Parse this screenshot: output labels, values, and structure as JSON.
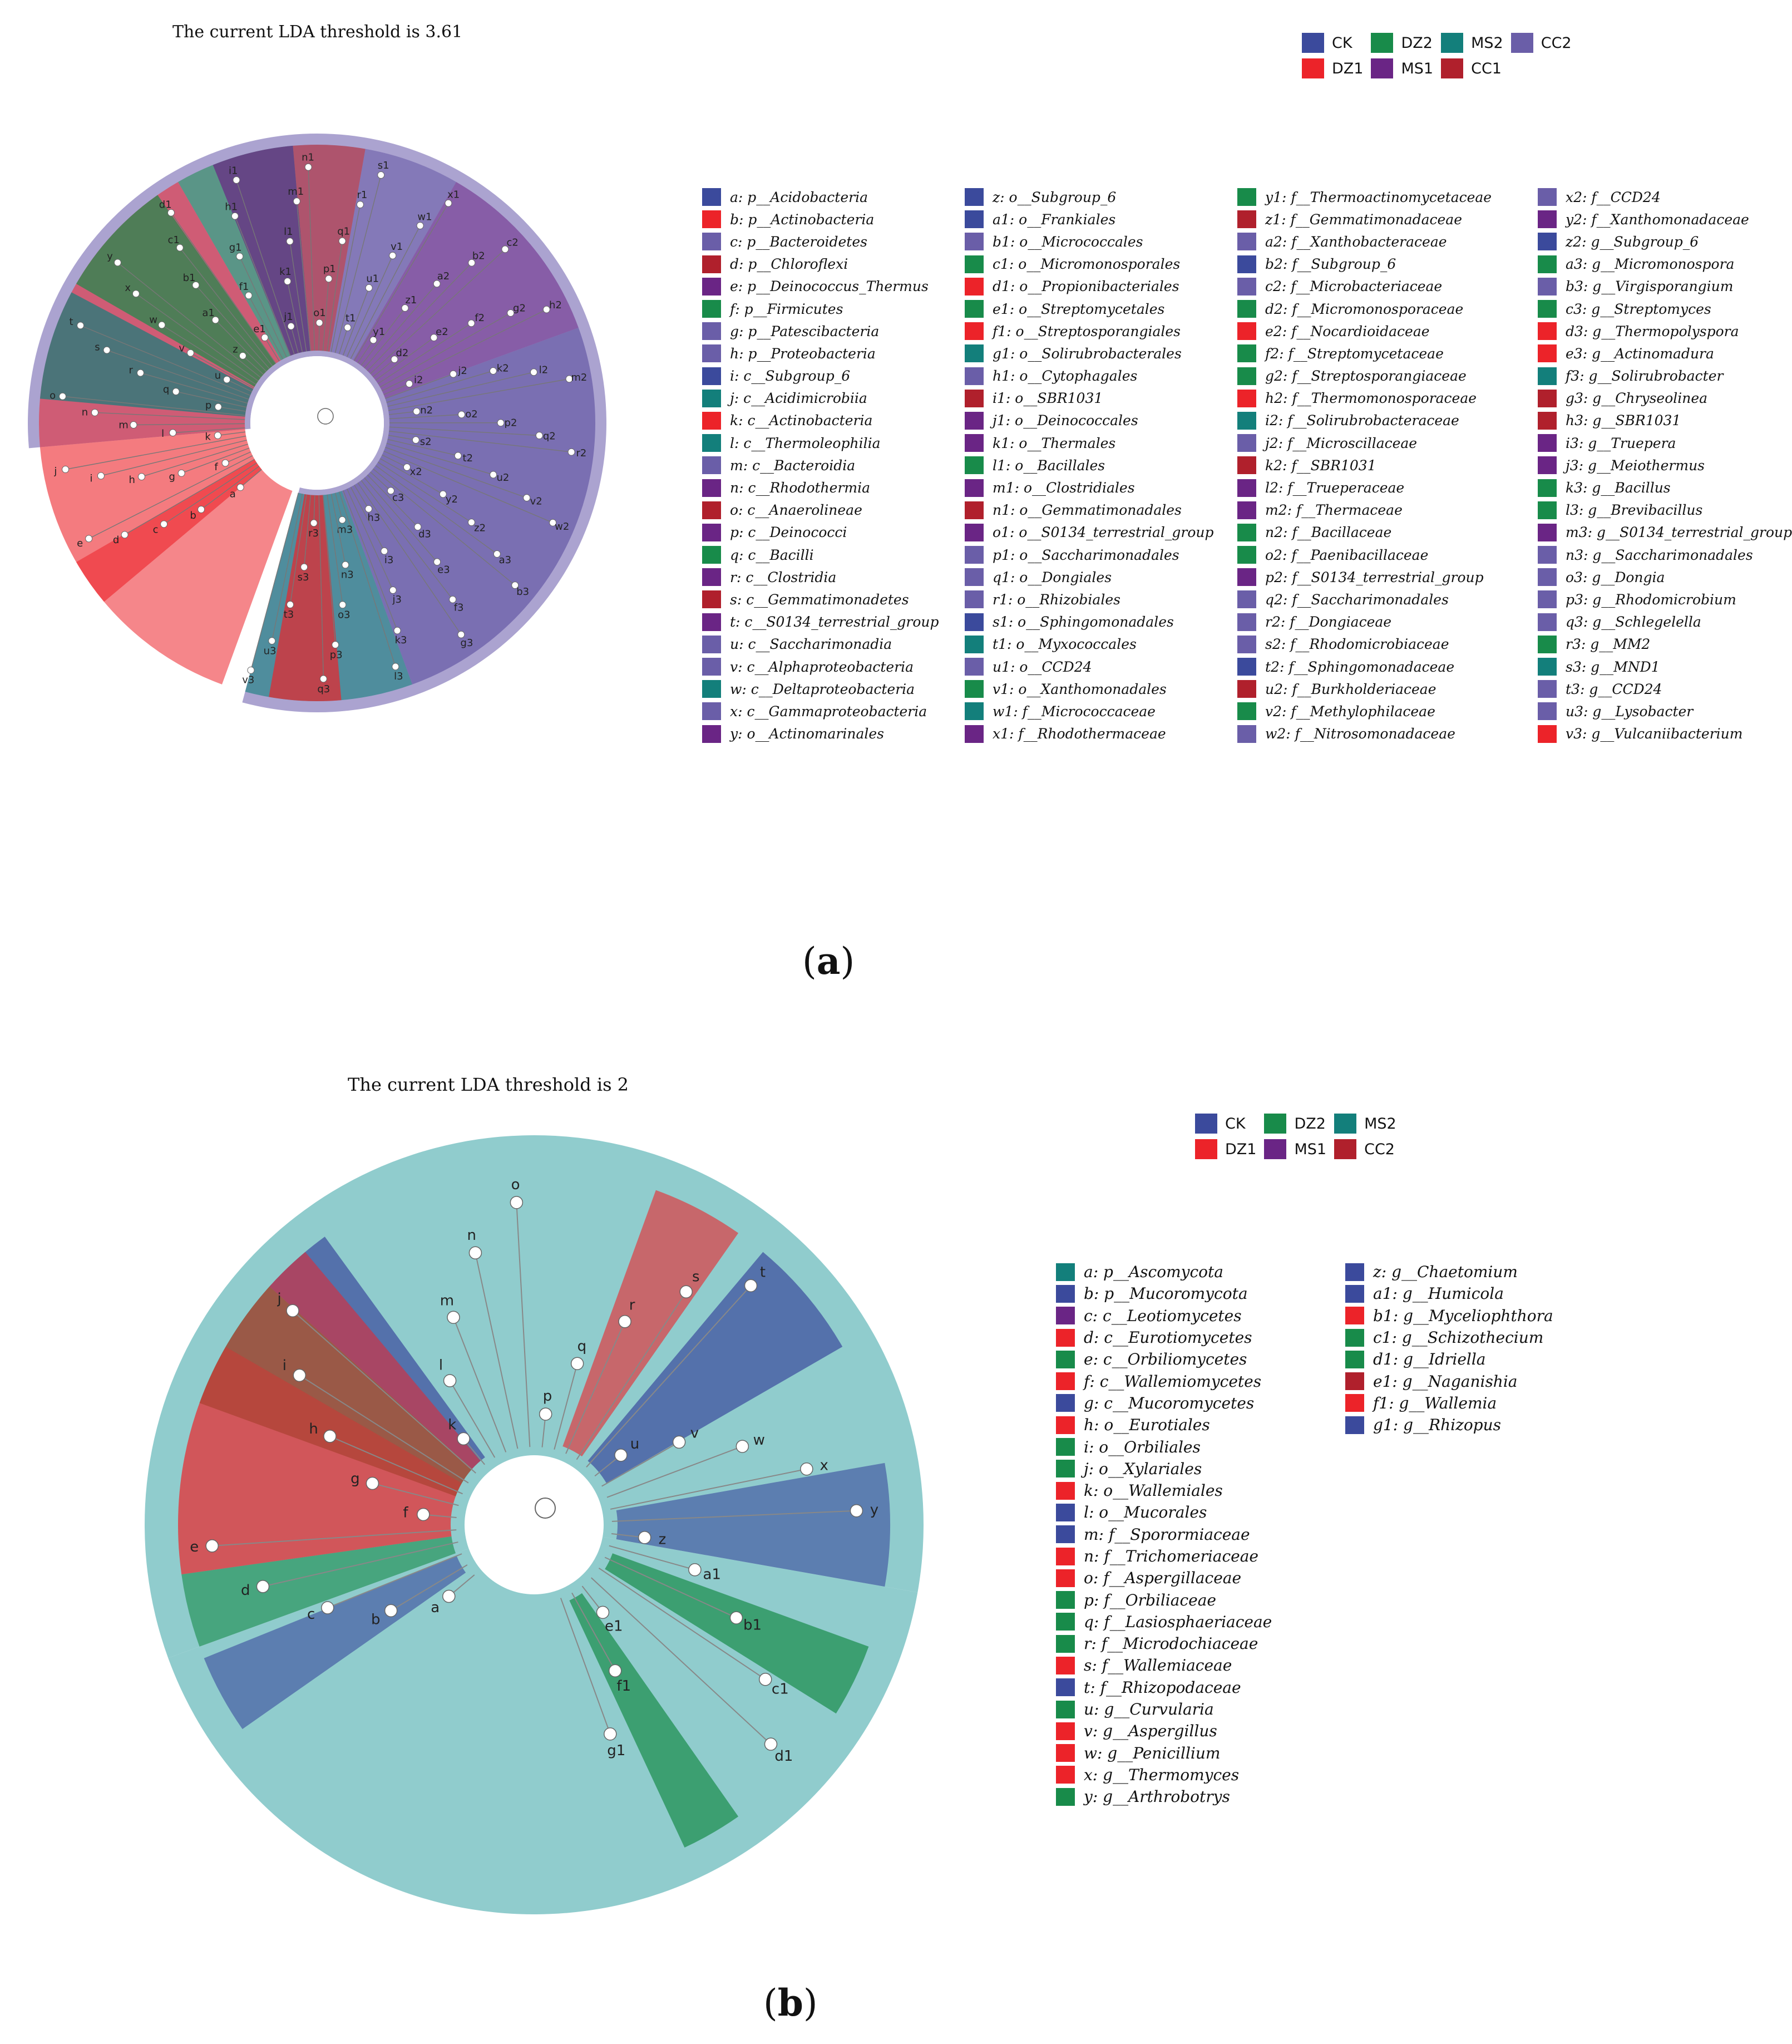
{
  "colors": {
    "CK": "#3b4a9c",
    "DZ1": "#ec2329",
    "DZ2": "#188b4a",
    "MS1": "#6a2585",
    "MS2": "#137f7b",
    "CC1": "#b0202c",
    "CC2": "#6a5ea8",
    "bg_a": "#8f84c0",
    "bg_b": "#7cc3c4"
  },
  "panel_a": {
    "title": "The current LDA threshold is 3.61",
    "label": "a",
    "groups": [
      {
        "name": "CK",
        "color": "#3b4a9c"
      },
      {
        "name": "DZ1",
        "color": "#ec2329"
      },
      {
        "name": "DZ2",
        "color": "#188b4a"
      },
      {
        "name": "MS1",
        "color": "#6a2585"
      },
      {
        "name": "MS2",
        "color": "#137f7b"
      },
      {
        "name": "CC1",
        "color": "#b0202c"
      },
      {
        "name": "CC2",
        "color": "#6a5ea8"
      }
    ],
    "taxa": [
      {
        "label": "a: p__Acidobacteria",
        "color": "#3b4a9c"
      },
      {
        "label": "b: p__Actinobacteria",
        "color": "#ec2329"
      },
      {
        "label": "c: p__Bacteroidetes",
        "color": "#6a5ea8"
      },
      {
        "label": "d: p__Chloroflexi",
        "color": "#b0202c"
      },
      {
        "label": "e: p__Deinococcus_Thermus",
        "color": "#6a2585"
      },
      {
        "label": "f: p__Firmicutes",
        "color": "#188b4a"
      },
      {
        "label": "g: p__Patescibacteria",
        "color": "#6a5ea8"
      },
      {
        "label": "h: p__Proteobacteria",
        "color": "#6a5ea8"
      },
      {
        "label": "i: c__Subgroup_6",
        "color": "#3b4a9c"
      },
      {
        "label": "j: c__Acidimicrobiia",
        "color": "#137f7b"
      },
      {
        "label": "k: c__Actinobacteria",
        "color": "#ec2329"
      },
      {
        "label": "l: c__Thermoleophilia",
        "color": "#137f7b"
      },
      {
        "label": "m: c__Bacteroidia",
        "color": "#6a5ea8"
      },
      {
        "label": "n: c__Rhodothermia",
        "color": "#6a2585"
      },
      {
        "label": "o: c__Anaerolineae",
        "color": "#b0202c"
      },
      {
        "label": "p: c__Deinococci",
        "color": "#6a2585"
      },
      {
        "label": "q: c__Bacilli",
        "color": "#188b4a"
      },
      {
        "label": "r: c__Clostridia",
        "color": "#6a2585"
      },
      {
        "label": "s: c__Gemmatimonadetes",
        "color": "#b0202c"
      },
      {
        "label": "t: c__S0134_terrestrial_group",
        "color": "#6a2585"
      },
      {
        "label": "u: c__Saccharimonadia",
        "color": "#6a5ea8"
      },
      {
        "label": "v: c__Alphaproteobacteria",
        "color": "#6a5ea8"
      },
      {
        "label": "w: c__Deltaproteobacteria",
        "color": "#137f7b"
      },
      {
        "label": "x: c__Gammaproteobacteria",
        "color": "#6a5ea8"
      },
      {
        "label": "y: o__Actinomarinales",
        "color": "#6a2585"
      },
      {
        "label": "z: o__Subgroup_6",
        "color": "#3b4a9c"
      },
      {
        "label": "a1: o__Frankiales",
        "color": "#3b4a9c"
      },
      {
        "label": "b1: o__Micrococcales",
        "color": "#6a5ea8"
      },
      {
        "label": "c1: o__Micromonosporales",
        "color": "#188b4a"
      },
      {
        "label": "d1: o__Propionibacteriales",
        "color": "#ec2329"
      },
      {
        "label": "e1: o__Streptomycetales",
        "color": "#188b4a"
      },
      {
        "label": "f1: o__Streptosporangiales",
        "color": "#ec2329"
      },
      {
        "label": "g1: o__Solirubrobacterales",
        "color": "#137f7b"
      },
      {
        "label": "h1: o__Cytophagales",
        "color": "#6a5ea8"
      },
      {
        "label": "i1: o__SBR1031",
        "color": "#b0202c"
      },
      {
        "label": "j1: o__Deinococcales",
        "color": "#6a2585"
      },
      {
        "label": "k1: o__Thermales",
        "color": "#6a2585"
      },
      {
        "label": "l1: o__Bacillales",
        "color": "#188b4a"
      },
      {
        "label": "m1: o__Clostridiales",
        "color": "#6a2585"
      },
      {
        "label": "n1: o__Gemmatimonadales",
        "color": "#b0202c"
      },
      {
        "label": "o1: o__S0134_terrestrial_group",
        "color": "#6a2585"
      },
      {
        "label": "p1: o__Saccharimonadales",
        "color": "#6a5ea8"
      },
      {
        "label": "q1: o__Dongiales",
        "color": "#6a5ea8"
      },
      {
        "label": "r1: o__Rhizobiales",
        "color": "#6a5ea8"
      },
      {
        "label": "s1: o__Sphingomonadales",
        "color": "#3b4a9c"
      },
      {
        "label": "t1: o__Myxococcales",
        "color": "#137f7b"
      },
      {
        "label": "u1: o__CCD24",
        "color": "#6a5ea8"
      },
      {
        "label": "v1: o__Xanthomonadales",
        "color": "#188b4a"
      },
      {
        "label": "w1: f__Micrococcaceae",
        "color": "#137f7b"
      },
      {
        "label": "x1: f__Rhodothermaceae",
        "color": "#6a2585"
      },
      {
        "label": "y1: f__Thermoactinomycetaceae",
        "color": "#188b4a"
      },
      {
        "label": "z1: f__Gemmatimonadaceae",
        "color": "#b0202c"
      },
      {
        "label": "a2: f__Xanthobacteraceae",
        "color": "#6a5ea8"
      },
      {
        "label": "b2: f__Subgroup_6",
        "color": "#3b4a9c"
      },
      {
        "label": "c2: f__Microbacteriaceae",
        "color": "#6a5ea8"
      },
      {
        "label": "d2: f__Micromonosporaceae",
        "color": "#188b4a"
      },
      {
        "label": "e2: f__Nocardioidaceae",
        "color": "#ec2329"
      },
      {
        "label": "f2: f__Streptomycetaceae",
        "color": "#188b4a"
      },
      {
        "label": "g2: f__Streptosporangiaceae",
        "color": "#188b4a"
      },
      {
        "label": "h2: f__Thermomonosporaceae",
        "color": "#ec2329"
      },
      {
        "label": "i2: f__Solirubrobacteraceae",
        "color": "#137f7b"
      },
      {
        "label": "j2: f__Microscillaceae",
        "color": "#6a5ea8"
      },
      {
        "label": "k2: f__SBR1031",
        "color": "#b0202c"
      },
      {
        "label": "l2: f__Trueperaceae",
        "color": "#6a2585"
      },
      {
        "label": "m2: f__Thermaceae",
        "color": "#6a2585"
      },
      {
        "label": "n2: f__Bacillaceae",
        "color": "#188b4a"
      },
      {
        "label": "o2: f__Paenibacillaceae",
        "color": "#188b4a"
      },
      {
        "label": "p2: f__S0134_terrestrial_group",
        "color": "#6a2585"
      },
      {
        "label": "q2: f__Saccharimonadales",
        "color": "#6a5ea8"
      },
      {
        "label": "r2: f__Dongiaceae",
        "color": "#6a5ea8"
      },
      {
        "label": "s2: f__Rhodomicrobiaceae",
        "color": "#6a5ea8"
      },
      {
        "label": "t2: f__Sphingomonadaceae",
        "color": "#3b4a9c"
      },
      {
        "label": "u2: f__Burkholderiaceae",
        "color": "#b0202c"
      },
      {
        "label": "v2: f__Methylophilaceae",
        "color": "#188b4a"
      },
      {
        "label": "w2: f__Nitrosomonadaceae",
        "color": "#6a5ea8"
      },
      {
        "label": "x2: f__CCD24",
        "color": "#6a5ea8"
      },
      {
        "label": "y2: f__Xanthomonadaceae",
        "color": "#6a2585"
      },
      {
        "label": "z2: g__Subgroup_6",
        "color": "#3b4a9c"
      },
      {
        "label": "a3: g__Micromonospora",
        "color": "#188b4a"
      },
      {
        "label": "b3: g__Virgisporangium",
        "color": "#6a5ea8"
      },
      {
        "label": "c3: g__Streptomyces",
        "color": "#188b4a"
      },
      {
        "label": "d3: g__Thermopolyspora",
        "color": "#ec2329"
      },
      {
        "label": "e3: g__Actinomadura",
        "color": "#ec2329"
      },
      {
        "label": "f3: g__Solirubrobacter",
        "color": "#137f7b"
      },
      {
        "label": "g3: g__Chryseolinea",
        "color": "#b0202c"
      },
      {
        "label": "h3: g__SBR1031",
        "color": "#b0202c"
      },
      {
        "label": "i3: g__Truepera",
        "color": "#6a2585"
      },
      {
        "label": "j3: g__Meiothermus",
        "color": "#6a2585"
      },
      {
        "label": "k3: g__Bacillus",
        "color": "#188b4a"
      },
      {
        "label": "l3: g__Brevibacillus",
        "color": "#188b4a"
      },
      {
        "label": "m3: g__S0134_terrestrial_group",
        "color": "#6a2585"
      },
      {
        "label": "n3: g__Saccharimonadales",
        "color": "#6a5ea8"
      },
      {
        "label": "o3: g__Dongia",
        "color": "#6a5ea8"
      },
      {
        "label": "p3: g__Rhodomicrobium",
        "color": "#6a5ea8"
      },
      {
        "label": "q3: g__Schlegelella",
        "color": "#6a5ea8"
      },
      {
        "label": "r3: g__MM2",
        "color": "#188b4a"
      },
      {
        "label": "s3: g__MND1",
        "color": "#137f7b"
      },
      {
        "label": "t3: g__CCD24",
        "color": "#6a5ea8"
      },
      {
        "label": "u3: g__Lysobacter",
        "color": "#6a5ea8"
      },
      {
        "label": "v3: g__Vulcaniibacterium",
        "color": "#ec2329"
      }
    ],
    "clado_letters": [
      "a",
      "b",
      "c",
      "d",
      "e",
      "f",
      "g",
      "h",
      "i",
      "j",
      "k",
      "l",
      "m",
      "n",
      "o",
      "p",
      "q",
      "r",
      "s",
      "t",
      "u",
      "v",
      "w",
      "x",
      "y",
      "z",
      "a1",
      "b1",
      "c1",
      "d1",
      "e1",
      "f1",
      "g1",
      "h1",
      "i1",
      "j1",
      "k1",
      "l1",
      "m1",
      "n1",
      "o1",
      "p1",
      "q1",
      "r1",
      "s1",
      "t1",
      "u1",
      "v1",
      "w1",
      "x1",
      "y1",
      "z1",
      "a2",
      "b2",
      "c2",
      "d2",
      "e2",
      "f2",
      "g2",
      "h2",
      "i2",
      "j2",
      "k2",
      "l2",
      "m2",
      "n2",
      "o2",
      "p2",
      "q2",
      "r2",
      "s2",
      "t2",
      "u2",
      "v2",
      "w2",
      "x2",
      "y2",
      "z2",
      "a3",
      "b3",
      "c3",
      "d3",
      "e3",
      "f3",
      "g3",
      "h3",
      "i3",
      "j3",
      "k3",
      "l3",
      "m3",
      "n3",
      "o3",
      "p3",
      "q3",
      "r3",
      "s3",
      "t3",
      "u3",
      "v3"
    ]
  },
  "panel_b": {
    "title": "The current LDA threshold is 2",
    "label": "b",
    "groups": [
      {
        "name": "CK",
        "color": "#3b4a9c"
      },
      {
        "name": "DZ1",
        "color": "#ec2329"
      },
      {
        "name": "DZ2",
        "color": "#188b4a"
      },
      {
        "name": "MS1",
        "color": "#6a2585"
      },
      {
        "name": "MS2",
        "color": "#137f7b"
      },
      {
        "name": "CC2",
        "color": "#b0202c"
      }
    ],
    "taxa": [
      {
        "label": "a: p__Ascomycota",
        "color": "#137f7b"
      },
      {
        "label": "b: p__Mucoromycota",
        "color": "#3b4a9c"
      },
      {
        "label": "c: c__Leotiomycetes",
        "color": "#6a2585"
      },
      {
        "label": "d: c__Eurotiomycetes",
        "color": "#ec2329"
      },
      {
        "label": "e: c__Orbiliomycetes",
        "color": "#188b4a"
      },
      {
        "label": "f: c__Wallemiomycetes",
        "color": "#ec2329"
      },
      {
        "label": "g: c__Mucoromycetes",
        "color": "#3b4a9c"
      },
      {
        "label": "h: o__Eurotiales",
        "color": "#ec2329"
      },
      {
        "label": "i: o__Orbiliales",
        "color": "#188b4a"
      },
      {
        "label": "j: o__Xylariales",
        "color": "#188b4a"
      },
      {
        "label": "k: o__Wallemiales",
        "color": "#ec2329"
      },
      {
        "label": "l: o__Mucorales",
        "color": "#3b4a9c"
      },
      {
        "label": "m: f__Sporormiaceae",
        "color": "#3b4a9c"
      },
      {
        "label": "n: f__Trichomeriaceae",
        "color": "#ec2329"
      },
      {
        "label": "o: f__Aspergillaceae",
        "color": "#ec2329"
      },
      {
        "label": "p: f__Orbiliaceae",
        "color": "#188b4a"
      },
      {
        "label": "q: f__Lasiosphaeriaceae",
        "color": "#188b4a"
      },
      {
        "label": "r: f__Microdochiaceae",
        "color": "#188b4a"
      },
      {
        "label": "s: f__Wallemiaceae",
        "color": "#ec2329"
      },
      {
        "label": "t: f__Rhizopodaceae",
        "color": "#3b4a9c"
      },
      {
        "label": "u: g__Curvularia",
        "color": "#188b4a"
      },
      {
        "label": "v: g__Aspergillus",
        "color": "#ec2329"
      },
      {
        "label": "w: g__Penicillium",
        "color": "#ec2329"
      },
      {
        "label": "x: g__Thermomyces",
        "color": "#ec2329"
      },
      {
        "label": "y: g__Arthrobotrys",
        "color": "#188b4a"
      },
      {
        "label": "z: g__Chaetomium",
        "color": "#3b4a9c"
      },
      {
        "label": "a1: g__Humicola",
        "color": "#3b4a9c"
      },
      {
        "label": "b1: g__Myceliophthora",
        "color": "#ec2329"
      },
      {
        "label": "c1: g__Schizothecium",
        "color": "#188b4a"
      },
      {
        "label": "d1: g__Idriella",
        "color": "#188b4a"
      },
      {
        "label": "e1: g__Naganishia",
        "color": "#b0202c"
      },
      {
        "label": "f1: g__Wallemia",
        "color": "#ec2329"
      },
      {
        "label": "g1: g__Rhizopus",
        "color": "#3b4a9c"
      }
    ]
  }
}
